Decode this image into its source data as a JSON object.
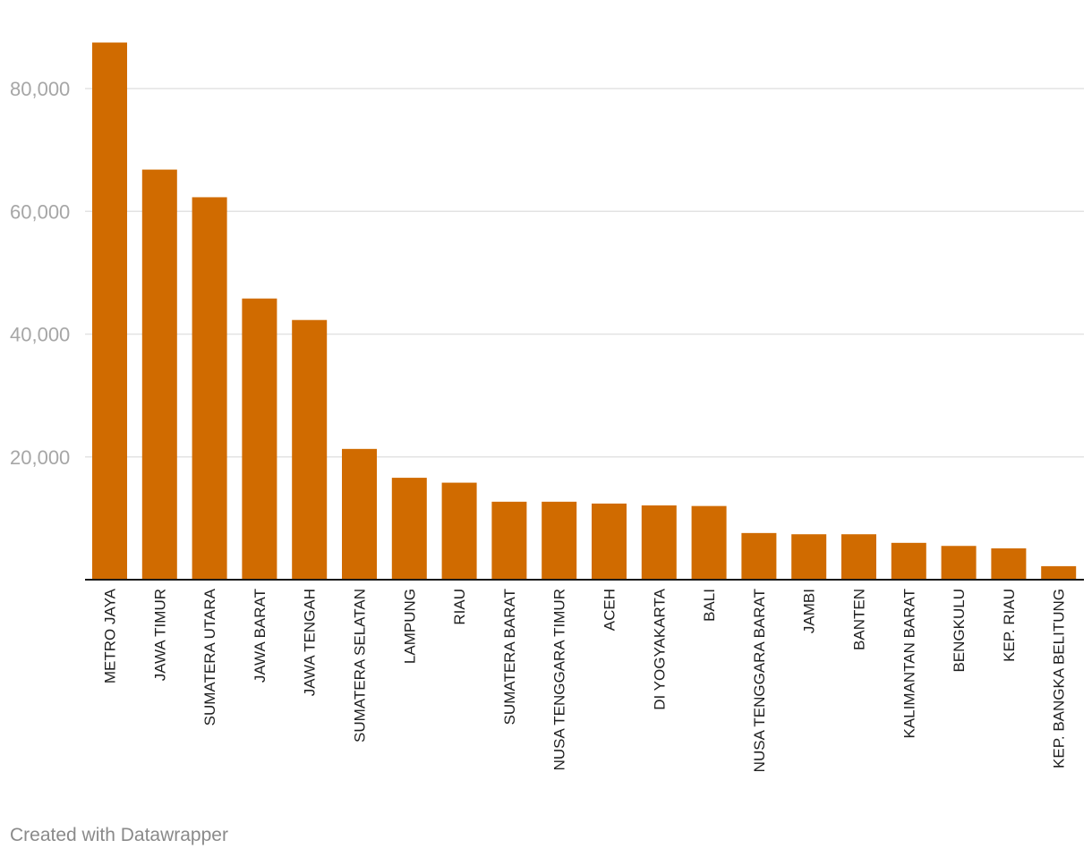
{
  "chart_data": {
    "type": "bar",
    "categories": [
      "METRO JAYA",
      "JAWA TIMUR",
      "SUMATERA UTARA",
      "JAWA BARAT",
      "JAWA TENGAH",
      "SUMATERA SELATAN",
      "LAMPUNG",
      "RIAU",
      "SUMATERA BARAT",
      "NUSA TENGGARA TIMUR",
      "ACEH",
      "DI YOGYAKARTA",
      "BALI",
      "NUSA TENGGARA BARAT",
      "JAMBI",
      "BANTEN",
      "KALIMANTAN BARAT",
      "BENGKULU",
      "KEP. RIAU",
      "KEP. BANGKA BELITUNG"
    ],
    "values": [
      87500,
      66800,
      62300,
      45800,
      42300,
      21300,
      16600,
      15800,
      12700,
      12700,
      12400,
      12100,
      12000,
      7600,
      7400,
      7400,
      6000,
      5500,
      5100,
      2200
    ],
    "yticks": [
      {
        "value": 20000,
        "label": "20,000"
      },
      {
        "value": 40000,
        "label": "40,000"
      },
      {
        "value": 60000,
        "label": "60,000"
      },
      {
        "value": 80000,
        "label": "80,000"
      }
    ],
    "ylim": [
      0,
      90000
    ],
    "grid": true,
    "bar_color": "#d06b00",
    "gridline_color": "#e3e3e3",
    "axis_color": "#1a1a1a"
  },
  "footer": {
    "credit": "Created with Datawrapper"
  }
}
